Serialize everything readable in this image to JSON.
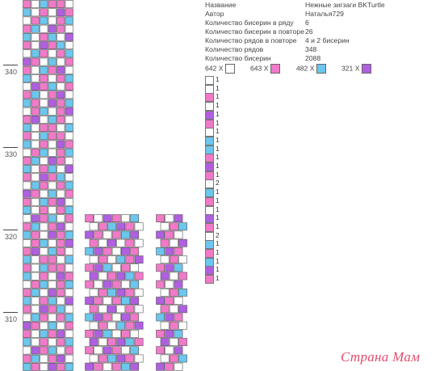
{
  "info": {
    "rows": [
      {
        "key": "Название",
        "value": "Нежные зигзаги BKTurtle"
      },
      {
        "key": "Автор",
        "value": "Наталья729"
      },
      {
        "key": "Количество бисерин в ряду",
        "value": "6"
      },
      {
        "key": "Количество бисерин в повторе",
        "value": "26"
      },
      {
        "key": "Количество рядов в повторе",
        "value": "4 и 2 бисерин"
      },
      {
        "key": "Количество рядов",
        "value": "348"
      },
      {
        "key": "Количество бисерин",
        "value": "2088"
      }
    ]
  },
  "legend": [
    {
      "code": "642 X",
      "color": "#ffffff",
      "icon": "white-bead"
    },
    {
      "code": "643 X",
      "color": "#f07ac8",
      "icon": "pink-bead"
    },
    {
      "code": "482 X",
      "color": "#6cc6ee",
      "icon": "blue-bead"
    },
    {
      "code": "321 X",
      "color": "#b05fe0",
      "icon": "purple-bead"
    }
  ],
  "row_labels": [
    "340",
    "330",
    "320",
    "310"
  ],
  "colors": {
    "W": "#ffffff",
    "P": "#f07ac8",
    "B": "#6cc6ee",
    "V": "#b05fe0"
  },
  "sequence": [
    {
      "c": "W",
      "n": "1"
    },
    {
      "c": "W",
      "n": "1"
    },
    {
      "c": "P",
      "n": "1"
    },
    {
      "c": "W",
      "n": "1"
    },
    {
      "c": "V",
      "n": "1"
    },
    {
      "c": "P",
      "n": "1"
    },
    {
      "c": "W",
      "n": "1"
    },
    {
      "c": "B",
      "n": "1"
    },
    {
      "c": "B",
      "n": "1"
    },
    {
      "c": "P",
      "n": "1"
    },
    {
      "c": "V",
      "n": "1"
    },
    {
      "c": "P",
      "n": "1"
    },
    {
      "c": "W",
      "n": "2"
    },
    {
      "c": "B",
      "n": "1"
    },
    {
      "c": "P",
      "n": "1"
    },
    {
      "c": "W",
      "n": "1"
    },
    {
      "c": "V",
      "n": "1"
    },
    {
      "c": "P",
      "n": "1"
    },
    {
      "c": "W",
      "n": "2"
    },
    {
      "c": "B",
      "n": "1"
    },
    {
      "c": "P",
      "n": "1"
    },
    {
      "c": "B",
      "n": "1"
    },
    {
      "c": "V",
      "n": "1"
    },
    {
      "c": "P",
      "n": "1"
    }
  ],
  "main_pattern": [
    "PWBPPW",
    "BWPWVP",
    "WPBWPB",
    "PBWVPW",
    "BWPBWV",
    "PWVPBW",
    "WBPWPB",
    "VPWBWP",
    "PWBPVW",
    "BWPWPB",
    "WVPBWP",
    "PBWPVW",
    "BPWVPB",
    "WPBWPV",
    "PVWBPW",
    "BWPPWB"
  ],
  "small_pattern": [
    "PWVPWB",
    "WPBVPW",
    "VPWPBV",
    "PWVWPW",
    "BVPWVP",
    "WPWBPV",
    "PVBWPW",
    "VWPVBP"
  ],
  "watermark": "Страна Мам"
}
